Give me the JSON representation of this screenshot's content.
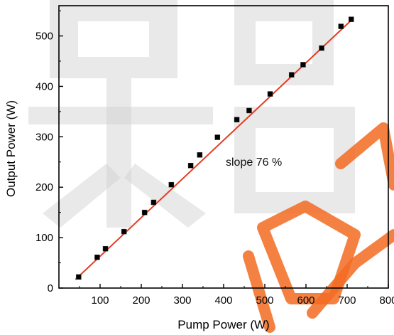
{
  "chart_data": {
    "type": "scatter",
    "xlabel": "Pump Power (W)",
    "ylabel": "Output Power (W)",
    "xlim": [
      0,
      800
    ],
    "ylim": [
      0,
      560
    ],
    "x_ticks": [
      "100",
      "200",
      "300",
      "400",
      "500",
      "600",
      "700",
      "800"
    ],
    "y_ticks": [
      "0",
      "100",
      "200",
      "300",
      "400",
      "500"
    ],
    "grid": false,
    "annotation": "slope 76 %",
    "marker_color": "#000000",
    "line_color": "#e53b1f",
    "series": [
      {
        "x": [
          48,
          93,
          113,
          158,
          208,
          230,
          273,
          320,
          342,
          385,
          432,
          462,
          513,
          565,
          593,
          638,
          685,
          710
        ],
        "y": [
          22,
          61,
          78,
          112,
          150,
          170,
          205,
          243,
          264,
          299,
          334,
          352,
          385,
          423,
          443,
          476,
          519,
          533
        ]
      }
    ],
    "fit_line": {
      "x": [
        40,
        715
      ],
      "y": [
        17,
        535
      ]
    }
  }
}
